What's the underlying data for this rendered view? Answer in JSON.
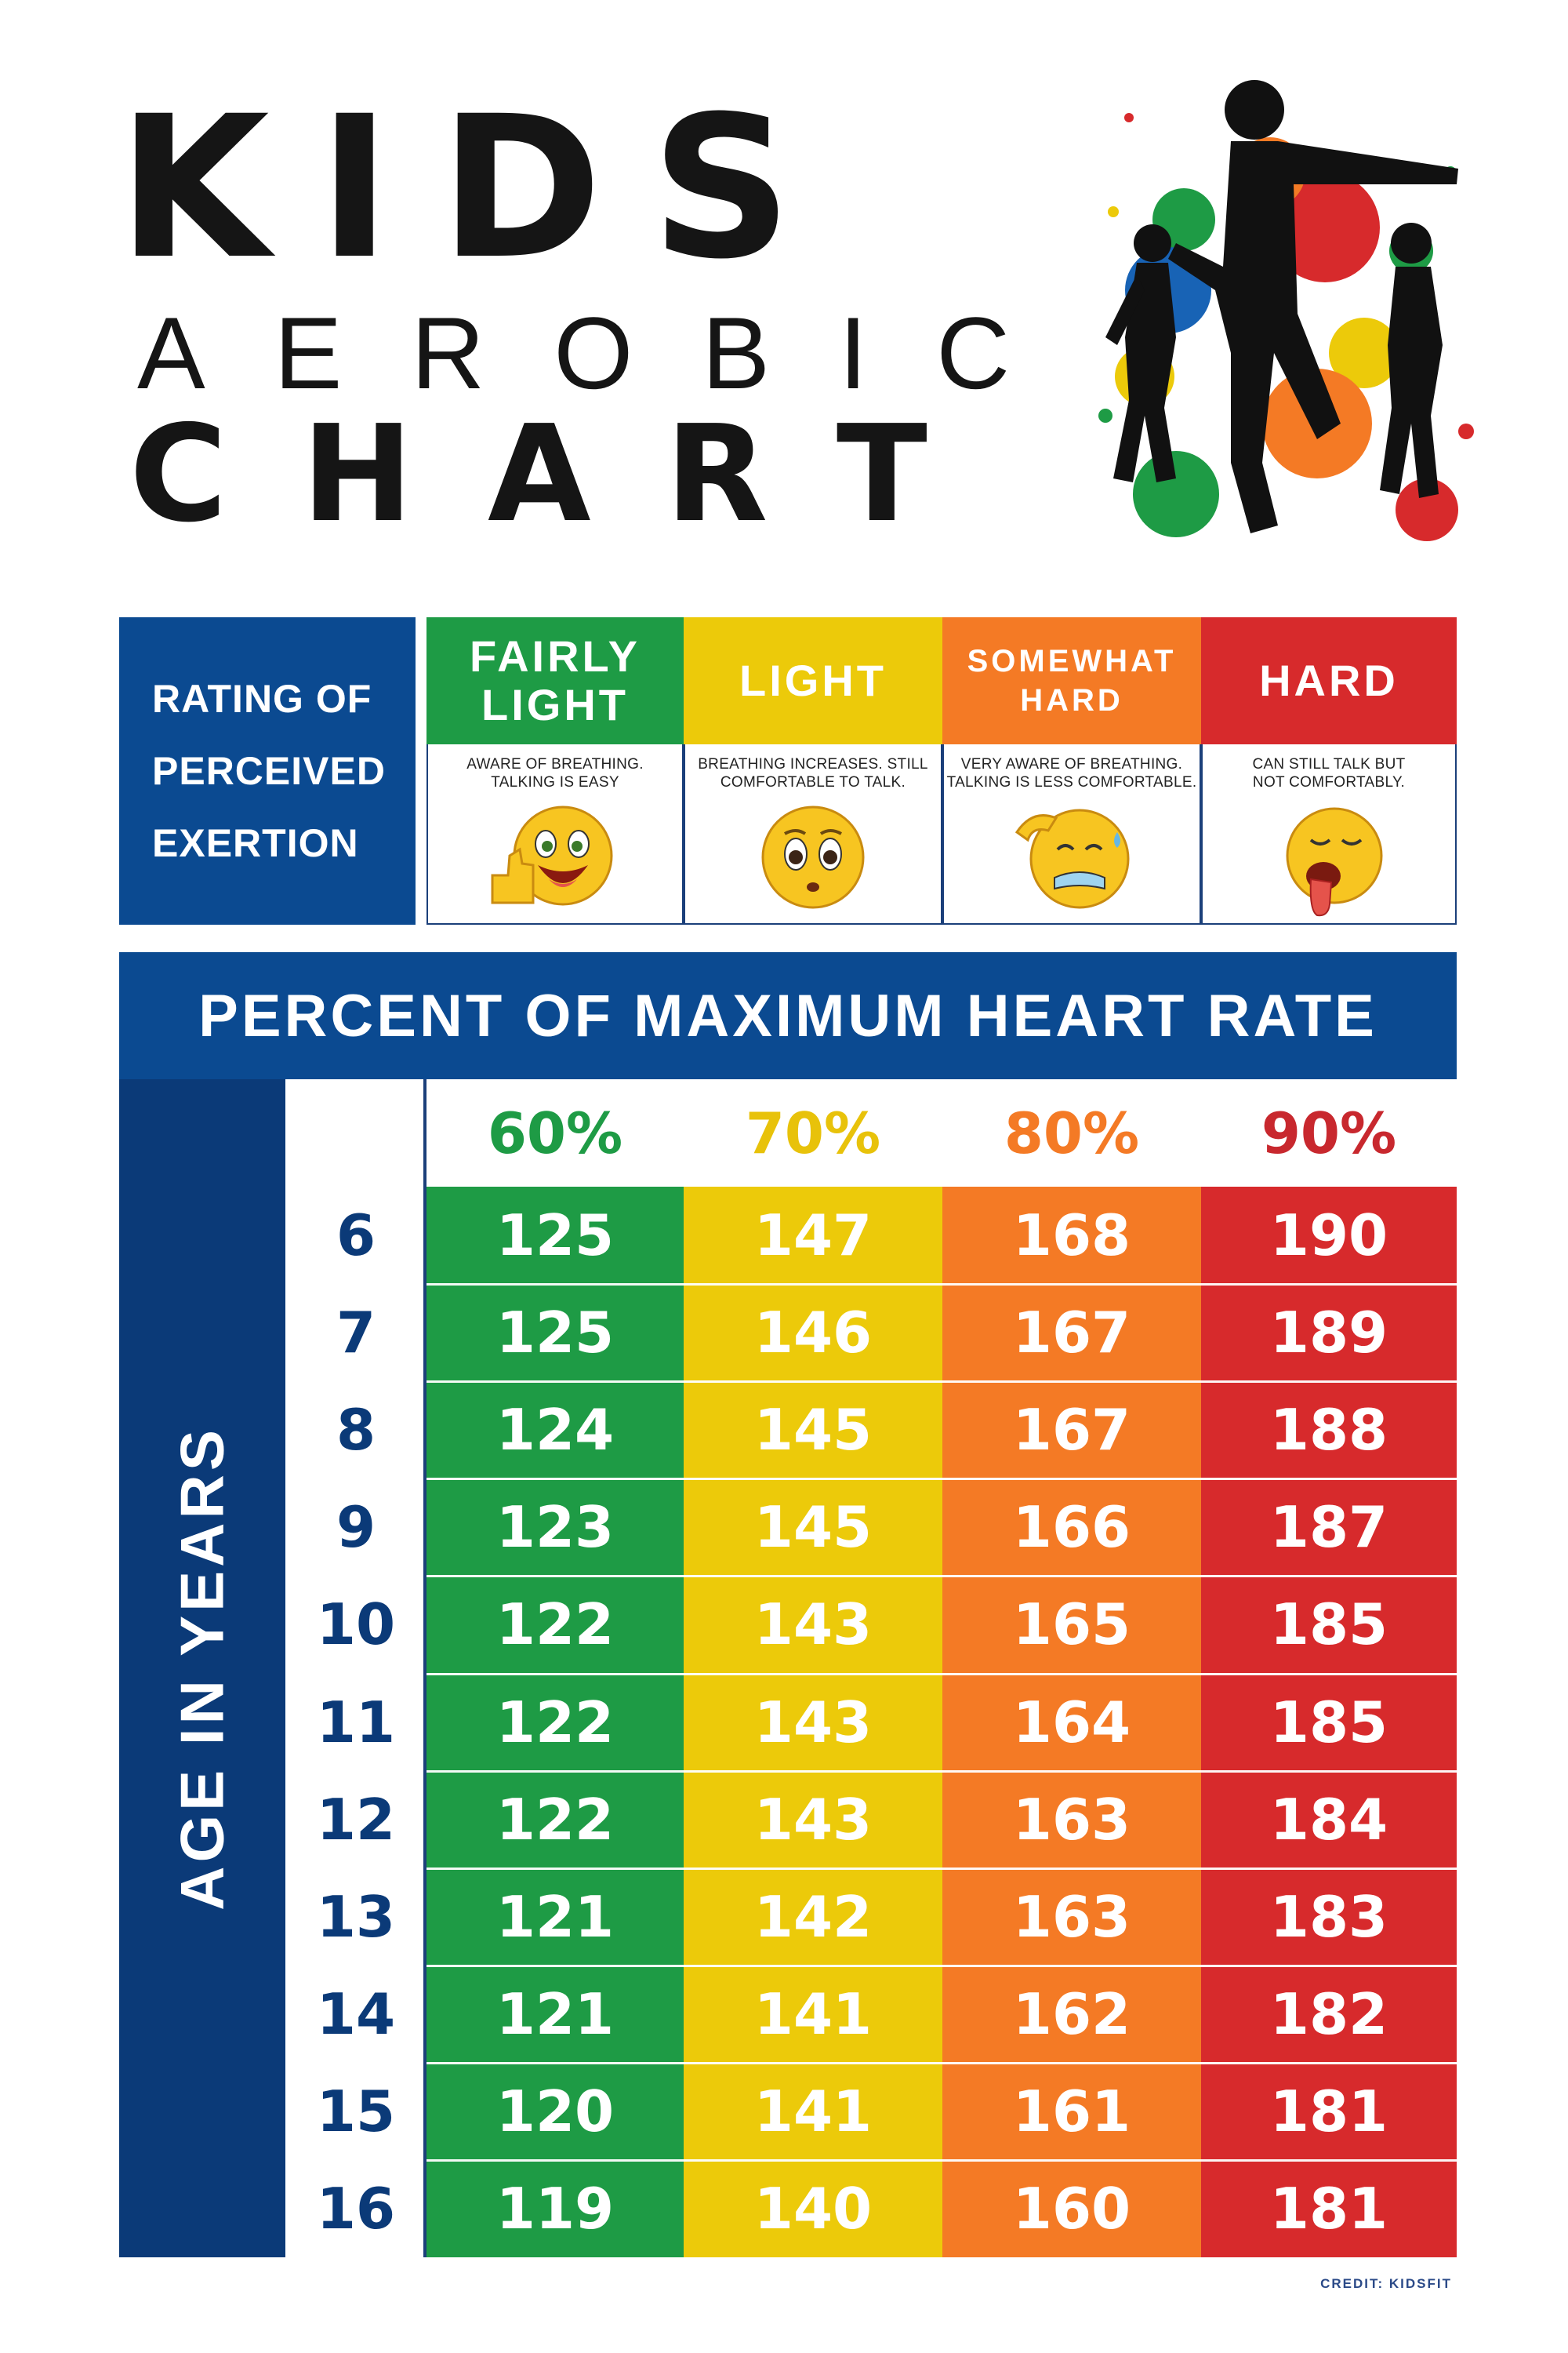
{
  "title": {
    "line1": "KIDS",
    "line2": "AEROBIC",
    "line3": "CHART"
  },
  "rpe": {
    "label_lines": [
      "RATING OF",
      "PERCEIVED",
      "EXERTION"
    ],
    "levels": [
      {
        "head_lines": [
          "FAIRLY",
          "LIGHT"
        ],
        "desc_lines": [
          "AWARE OF BREATHING.",
          "TALKING IS EASY"
        ],
        "color": "#1e9b45",
        "emoji": "thumbs-up-smile"
      },
      {
        "head_lines": [
          "LIGHT"
        ],
        "desc_lines": [
          "BREATHING INCREASES. STILL",
          "COMFORTABLE TO TALK."
        ],
        "color": "#ecca0a",
        "emoji": "nervous-face"
      },
      {
        "head_lines": [
          "SOMEWHAT",
          "HARD"
        ],
        "desc_lines": [
          "VERY AWARE OF BREATHING.",
          "TALKING IS LESS COMFORTABLE."
        ],
        "color": "#f47a25",
        "emoji": "sweating-face"
      },
      {
        "head_lines": [
          "HARD"
        ],
        "desc_lines": [
          "CAN STILL TALK BUT",
          "NOT COMFORTABLY."
        ],
        "color": "#d72a2c",
        "emoji": "exhausted-face"
      }
    ]
  },
  "chart_data": {
    "type": "table",
    "title": "PERCENT OF MAXIMUM HEART RATE",
    "row_header_label": "AGE IN YEARS",
    "columns": [
      "60%",
      "70%",
      "80%",
      "90%"
    ],
    "column_colors": [
      "#1e9b45",
      "#ecca0a",
      "#f47a25",
      "#d72a2c"
    ],
    "column_label_colors": [
      "#1e9b45",
      "#e8c20a",
      "#f47a25",
      "#c8282e"
    ],
    "rows": [
      {
        "age": "6",
        "values": [
          125,
          147,
          168,
          190
        ]
      },
      {
        "age": "7",
        "values": [
          125,
          146,
          167,
          189
        ]
      },
      {
        "age": "8",
        "values": [
          124,
          145,
          167,
          188
        ]
      },
      {
        "age": "9",
        "values": [
          123,
          145,
          166,
          187
        ]
      },
      {
        "age": "10",
        "values": [
          122,
          143,
          165,
          185
        ]
      },
      {
        "age": "11",
        "values": [
          122,
          143,
          164,
          185
        ]
      },
      {
        "age": "12",
        "values": [
          122,
          143,
          163,
          184
        ]
      },
      {
        "age": "13",
        "values": [
          121,
          142,
          163,
          183
        ]
      },
      {
        "age": "14",
        "values": [
          121,
          141,
          162,
          182
        ]
      },
      {
        "age": "15",
        "values": [
          120,
          141,
          161,
          181
        ]
      },
      {
        "age": "16",
        "values": [
          119,
          140,
          160,
          181
        ]
      }
    ]
  },
  "credit": "CREDIT: KIDSFIT",
  "icons": {
    "hero": "running-kids-paint-splash-icon"
  }
}
